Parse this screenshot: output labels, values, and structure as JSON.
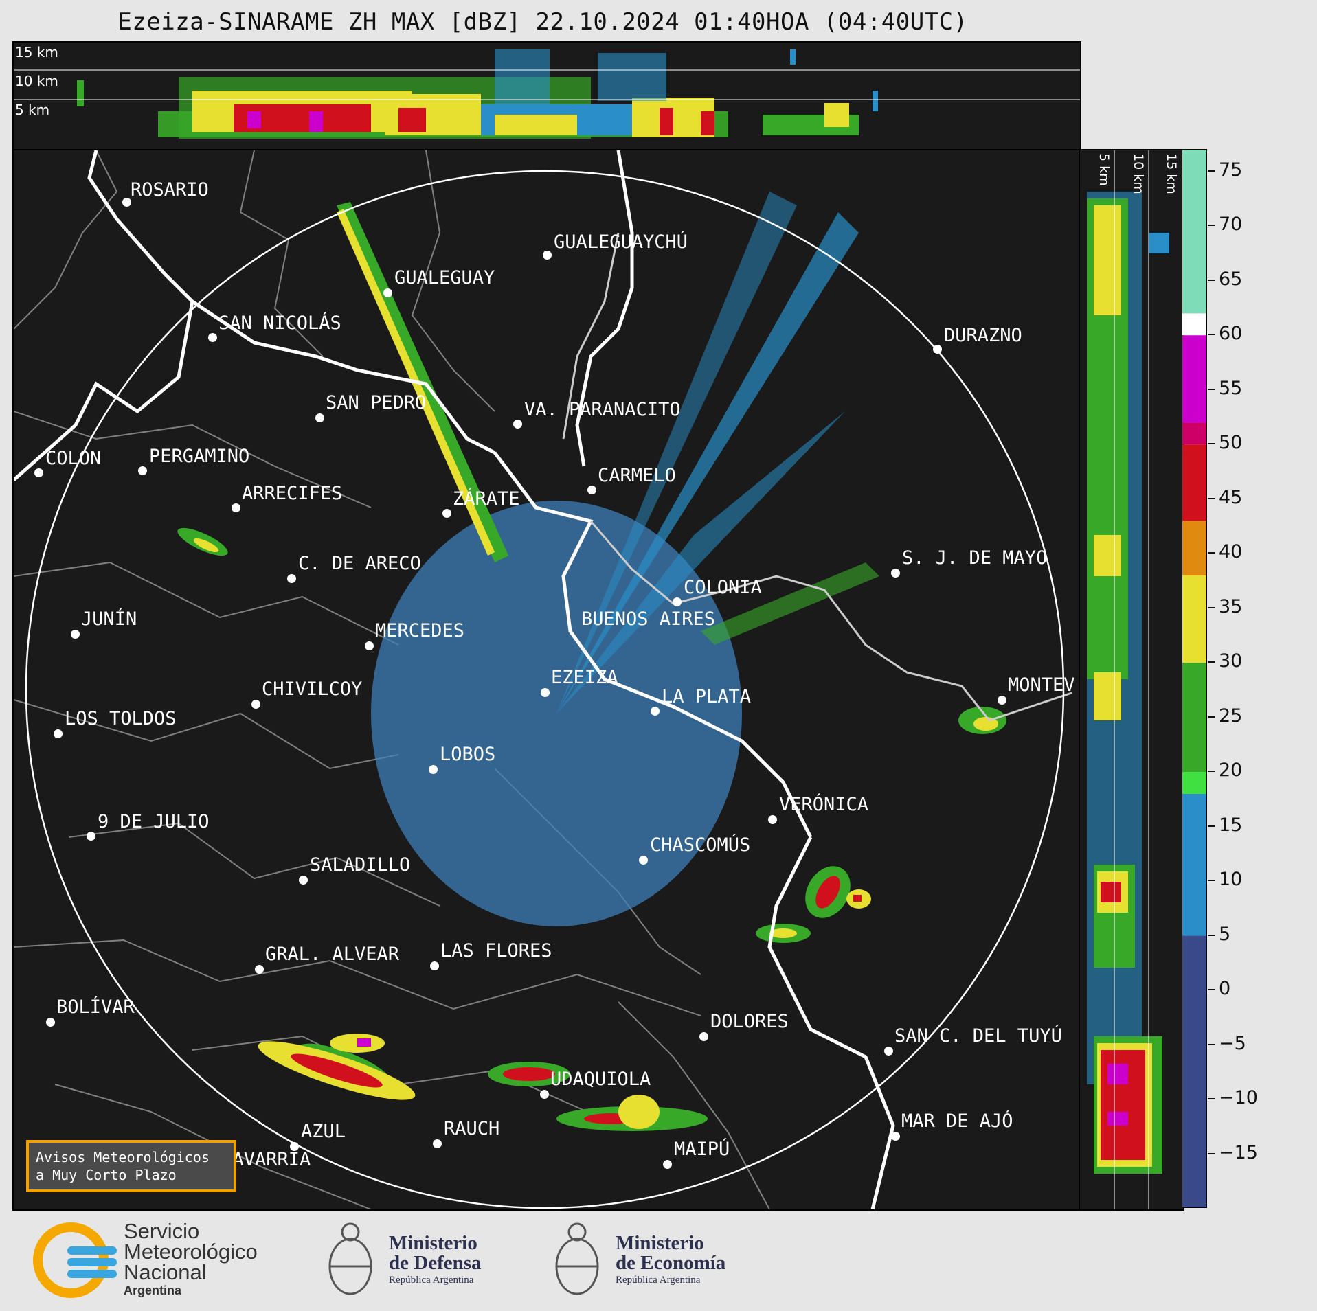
{
  "title": "Ezeiza-SINARAME ZH MAX [dBZ] 22.10.2024 01:40HOA (04:40UTC)",
  "top_panel": {
    "altitude_labels": [
      "15 km",
      "10 km",
      "5 km"
    ]
  },
  "side_panel": {
    "altitude_labels": [
      "5 km",
      "10 km",
      "15 km"
    ]
  },
  "colorbar": {
    "unit": "dBZ",
    "ticks": [
      "75",
      "70",
      "65",
      "60",
      "55",
      "50",
      "45",
      "40",
      "35",
      "30",
      "25",
      "20",
      "15",
      "10",
      "5",
      "0",
      "−5",
      "−10",
      "−15"
    ],
    "tick_values": [
      75,
      70,
      65,
      60,
      55,
      50,
      45,
      40,
      35,
      30,
      25,
      20,
      15,
      10,
      5,
      0,
      -5,
      -10,
      -15
    ],
    "range": [
      -20,
      77
    ],
    "bands": [
      {
        "from": 62,
        "to": 77,
        "color": "#7fdcb8"
      },
      {
        "from": 60,
        "to": 62,
        "color": "#ffffff"
      },
      {
        "from": 52,
        "to": 60,
        "color": "#cc00cc"
      },
      {
        "from": 50,
        "to": 52,
        "color": "#cc0066"
      },
      {
        "from": 43,
        "to": 50,
        "color": "#d0101c"
      },
      {
        "from": 38,
        "to": 43,
        "color": "#e08a10"
      },
      {
        "from": 30,
        "to": 38,
        "color": "#e8e030"
      },
      {
        "from": 20,
        "to": 30,
        "color": "#38a828"
      },
      {
        "from": 18,
        "to": 20,
        "color": "#40e040"
      },
      {
        "from": 5,
        "to": 18,
        "color": "#2a8fc8"
      },
      {
        "from": -20,
        "to": 5,
        "color": "#3a4a88"
      }
    ]
  },
  "map": {
    "radar": {
      "name": "EZEIZA",
      "range_ring": "white",
      "background": "#1a1a1a"
    },
    "cities": [
      {
        "name": "ROSARIO"
      },
      {
        "name": "GUALEGUAYCHÚ"
      },
      {
        "name": "GUALEGUAY"
      },
      {
        "name": "SAN NICOLÁS"
      },
      {
        "name": "DURAZNO"
      },
      {
        "name": "SAN PEDRO"
      },
      {
        "name": "VA. PARANACITO"
      },
      {
        "name": "COLON"
      },
      {
        "name": "PERGAMINO"
      },
      {
        "name": "CARMELO"
      },
      {
        "name": "ARRECIFES"
      },
      {
        "name": "ZÁRATE"
      },
      {
        "name": "S. J. DE MAYO"
      },
      {
        "name": "C. DE ARECO"
      },
      {
        "name": "COLONIA"
      },
      {
        "name": "JUNÍN"
      },
      {
        "name": "BUENOS AIRES"
      },
      {
        "name": "MERCEDES"
      },
      {
        "name": "EZEIZA"
      },
      {
        "name": "MONTEV"
      },
      {
        "name": "CHIVILCOY"
      },
      {
        "name": "LA PLATA"
      },
      {
        "name": "LOS TOLDOS"
      },
      {
        "name": "LOBOS"
      },
      {
        "name": "VERÓNICA"
      },
      {
        "name": "9 DE JULIO"
      },
      {
        "name": "CHASCOMÚS"
      },
      {
        "name": "SALADILLO"
      },
      {
        "name": "GRAL. ALVEAR"
      },
      {
        "name": "LAS FLORES"
      },
      {
        "name": "BOLÍVAR"
      },
      {
        "name": "DOLORES"
      },
      {
        "name": "SAN C. DEL TUYÚ"
      },
      {
        "name": "UDAQUIOLA"
      },
      {
        "name": "MAR DE AJÓ"
      },
      {
        "name": "RAUCH"
      },
      {
        "name": "AZUL"
      },
      {
        "name": "OLAVARRÍA"
      },
      {
        "name": "MAIPÚ"
      }
    ]
  },
  "avisos": {
    "line1": "Avisos Meteorológicos",
    "line2": "a Muy Corto Plazo"
  },
  "logos": {
    "smn": {
      "line1": "Servicio",
      "line2": "Meteorológico",
      "line3": "Nacional",
      "line4": "Argentina"
    },
    "defensa": {
      "line1": "Ministerio",
      "line2": "de Defensa",
      "line3": "República Argentina"
    },
    "economia": {
      "line1": "Ministerio",
      "line2": "de Economía",
      "line3": "República Argentina"
    }
  },
  "colors": {
    "weak_echo": "#3d7fb8",
    "green": "#38a828",
    "yellow": "#e8e030",
    "red": "#d0101c",
    "magenta": "#cc00cc",
    "coast": "#ffffff",
    "borders": "#808080",
    "avisos_border": "#f0a000",
    "smn_orange": "#f5a800",
    "smn_blue": "#3aa6e0"
  }
}
